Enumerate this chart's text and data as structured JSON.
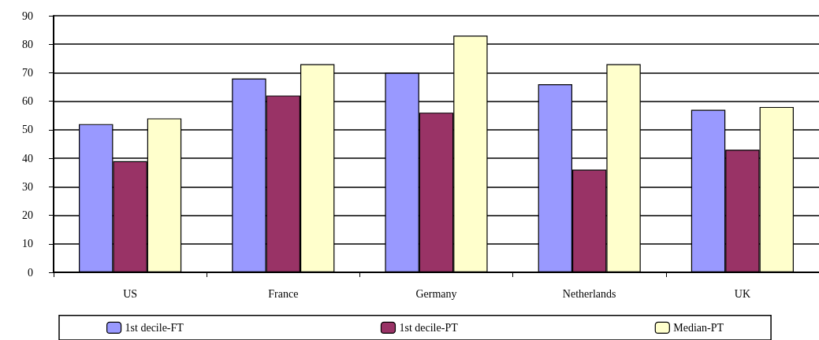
{
  "chart_data": {
    "type": "bar",
    "categories": [
      "US",
      "France",
      "Germany",
      "Netherlands",
      "UK"
    ],
    "series": [
      {
        "name": "1st decile-FT",
        "color": "#9999ff",
        "values": [
          52,
          68,
          70,
          66,
          57
        ]
      },
      {
        "name": "1st decile-PT",
        "color": "#993366",
        "values": [
          39,
          62,
          56,
          36,
          43
        ]
      },
      {
        "name": "Median-PT",
        "color": "#ffffcc",
        "values": [
          54,
          73,
          83,
          73,
          58
        ]
      }
    ],
    "ylim": [
      0,
      90
    ],
    "yticks": [
      0,
      10,
      20,
      30,
      40,
      50,
      60,
      70,
      80,
      90
    ],
    "grid": "y",
    "legend": "bottom"
  }
}
